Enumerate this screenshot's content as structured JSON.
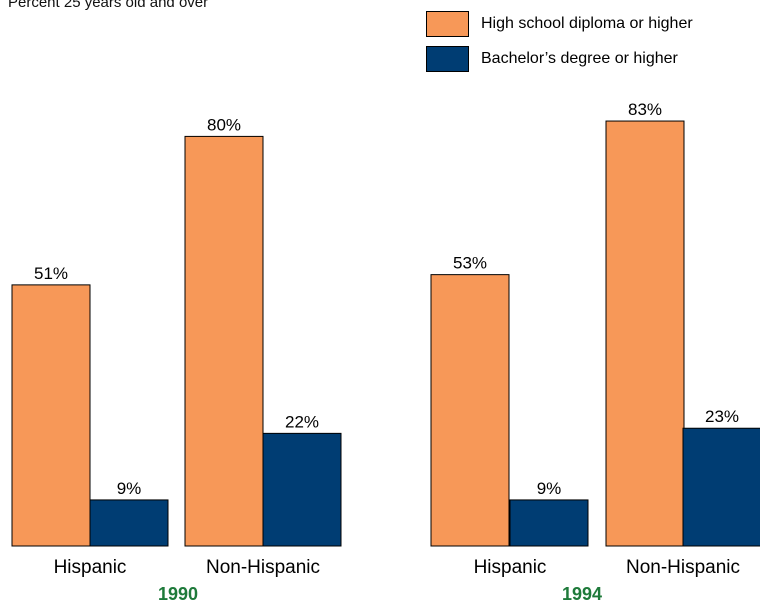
{
  "chart_data": {
    "type": "bar",
    "subtitle": "Percent 25 years old and over",
    "legend_position": "top-right",
    "series": [
      {
        "name": "High school diploma or higher",
        "color": "#F79858"
      },
      {
        "name": "Bachelor’s degree or higher",
        "color": "#003D73"
      }
    ],
    "panels": [
      {
        "year": "1990",
        "categories": [
          "Hispanic",
          "Non-Hispanic"
        ],
        "values": [
          [
            51,
            9
          ],
          [
            80,
            22
          ]
        ],
        "labels": [
          [
            "51%",
            "9%"
          ],
          [
            "80%",
            "22%"
          ]
        ]
      },
      {
        "year": "1994",
        "categories": [
          "Hispanic",
          "Non-Hispanic"
        ],
        "values": [
          [
            53,
            9
          ],
          [
            83,
            23
          ]
        ],
        "labels": [
          [
            "53%",
            "9%"
          ],
          [
            "83%",
            "23%"
          ]
        ]
      }
    ],
    "year_color": "#1E7A3A",
    "ylim": [
      0,
      100
    ],
    "grid": false
  }
}
